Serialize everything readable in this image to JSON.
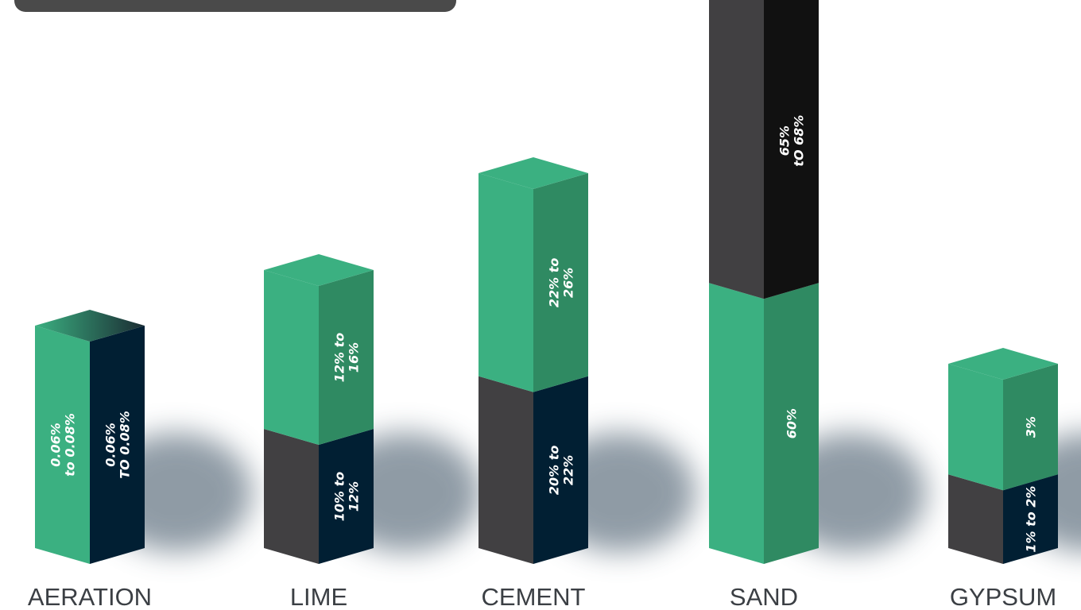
{
  "colors": {
    "green_front": "#3bb081",
    "green_side": "#2f8a62",
    "green_top": "#3bb081",
    "dark_front": "#414042",
    "navy_side": "#011f33",
    "black_side": "#111111",
    "label": "#3b3f44"
  },
  "chart_data": {
    "type": "bar",
    "stacked": true,
    "style": "3d-isometric-columns",
    "categories": [
      "AERATION",
      "LIME",
      "CEMENT",
      "SAND",
      "GYPSUM"
    ],
    "bars": [
      {
        "category": "AERATION",
        "split_columns": true,
        "front_label": "0.06%\nto 0.08%",
        "side_label": "0.06%\nTO 0.08%"
      },
      {
        "category": "LIME",
        "segments": [
          {
            "label": "10% to\n12%",
            "value": 12
          },
          {
            "label": "12% to\n16%",
            "value": 16
          }
        ]
      },
      {
        "category": "CEMENT",
        "segments": [
          {
            "label": "20% to\n22%",
            "value": 22
          },
          {
            "label": "22% to\n26%",
            "value": 26
          }
        ]
      },
      {
        "category": "SAND",
        "segments": [
          {
            "label": "60%",
            "value": 60
          },
          {
            "label": "65%\ntO 68%",
            "value": 68
          }
        ]
      },
      {
        "category": "GYPSUM",
        "segments": [
          {
            "label": "1% to 2%",
            "value": 2
          },
          {
            "label": "3%",
            "value": 3
          }
        ]
      }
    ]
  }
}
